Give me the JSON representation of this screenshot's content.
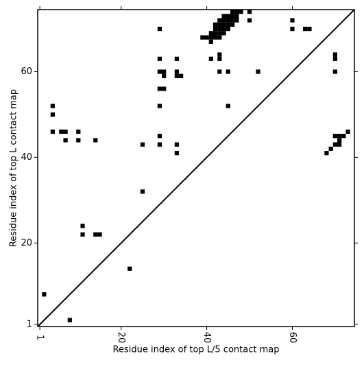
{
  "chart_data": {
    "type": "scatter",
    "xlabel": "Residue index of top L/5 contact map",
    "ylabel": "Residue index of top L contact map",
    "color": "#000000",
    "xlim": [
      0.5,
      74.5
    ],
    "ylim": [
      0.5,
      74.5
    ],
    "xticks": [
      1,
      20,
      40,
      60
    ],
    "yticks": [
      1,
      20,
      40,
      60
    ],
    "x": [
      2,
      8,
      22,
      11,
      11,
      14,
      15,
      25,
      4,
      4,
      4,
      6,
      7,
      7,
      10,
      10,
      14,
      25,
      29,
      29,
      29,
      30,
      30,
      29,
      30,
      29,
      29,
      29,
      33,
      33,
      33,
      34,
      33,
      33,
      41,
      41,
      43,
      43,
      43,
      45,
      45,
      52,
      50,
      50,
      60,
      60,
      63,
      64,
      70,
      70,
      70,
      39,
      40,
      41,
      42,
      43,
      41,
      42,
      43,
      44,
      42,
      43,
      44,
      45,
      42,
      43,
      44,
      45,
      46,
      43,
      44,
      45,
      46,
      47,
      44,
      45,
      46,
      47,
      46,
      47,
      48,
      68,
      69,
      70,
      70,
      71,
      71,
      71,
      72,
      73
    ],
    "y": [
      8,
      2,
      14,
      24,
      22,
      22,
      22,
      32,
      52,
      50,
      46,
      46,
      46,
      44,
      46,
      44,
      44,
      43,
      70,
      63,
      60,
      60,
      59,
      56,
      56,
      52,
      45,
      43,
      63,
      60,
      59,
      59,
      43,
      41,
      63,
      67,
      64,
      63,
      60,
      60,
      52,
      60,
      74,
      72,
      72,
      70,
      70,
      70,
      64,
      63,
      60,
      68,
      68,
      68,
      68,
      68,
      69,
      69,
      69,
      69,
      70,
      70,
      70,
      70,
      71,
      71,
      71,
      71,
      71,
      72,
      72,
      72,
      72,
      72,
      73,
      73,
      73,
      73,
      74,
      74,
      74,
      41,
      42,
      45,
      43,
      43,
      44,
      45,
      45,
      46
    ]
  }
}
